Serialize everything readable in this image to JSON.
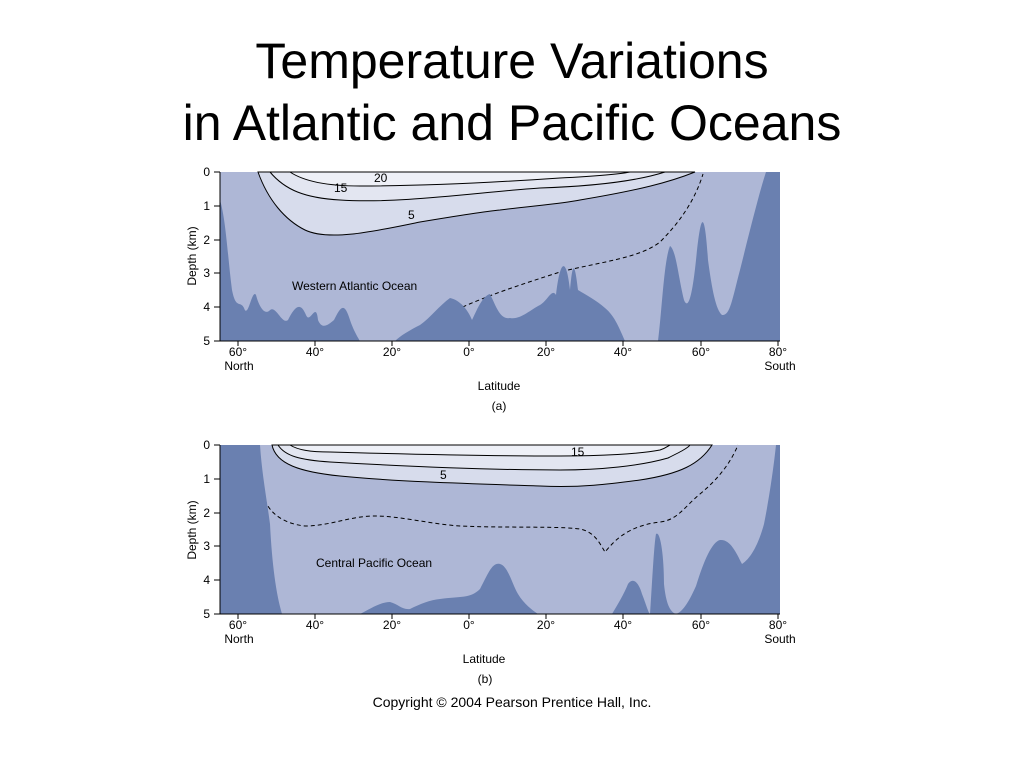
{
  "slide": {
    "title_line1": "Temperature Variations",
    "title_line2": "in Atlantic and Pacific Oceans"
  },
  "colors": {
    "water": "#aeb7d6",
    "seafloor": "#6a80b0",
    "warm_band": "#d7dcec",
    "warmest_band": "#eef0f7",
    "contour": "#000000"
  },
  "panels": [
    {
      "tag": "(a)",
      "ocean_label": "Western Atlantic Ocean",
      "y_axis_label": "Depth (km)",
      "y_ticks": [
        "0",
        "1",
        "2",
        "3",
        "4",
        "5"
      ],
      "x_axis_label": "Latitude",
      "x_ticks": [
        "60°",
        "40°",
        "20°",
        "0°",
        "20°",
        "40°",
        "60°",
        "80°"
      ],
      "x_sub_left": "North",
      "x_sub_right": "South",
      "contour_labels": [
        "20",
        "15",
        "5"
      ]
    },
    {
      "tag": "(b)",
      "ocean_label": "Central Pacific Ocean",
      "y_axis_label": "Depth (km)",
      "y_ticks": [
        "0",
        "1",
        "2",
        "3",
        "4",
        "5"
      ],
      "x_axis_label": "Latitude",
      "x_ticks": [
        "60°",
        "40°",
        "20°",
        "0°",
        "20°",
        "40°",
        "60°",
        "80°"
      ],
      "x_sub_left": "North",
      "x_sub_right": "South",
      "contour_labels": [
        "15",
        "5"
      ]
    }
  ],
  "copyright": "Copyright © 2004 Pearson Prentice Hall, Inc."
}
